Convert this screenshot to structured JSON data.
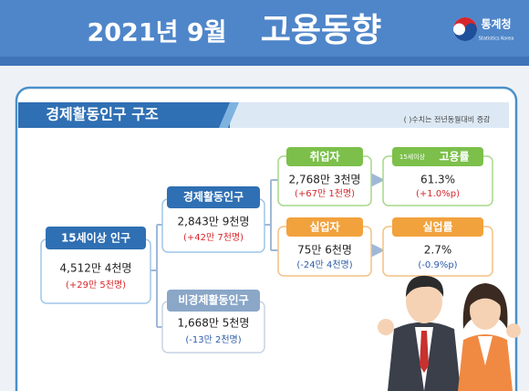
{
  "header": {
    "date": "2021년 9월",
    "title": "고용동향",
    "logo": {
      "name": "통계청",
      "subtitle": "Statistics Korea"
    }
  },
  "section": {
    "title": "경제활동인구 구조",
    "note": "( )수치는 전년동월대비 증감"
  },
  "nodes": [
    {
      "label": "15세이상 인구",
      "value": "4,512만 4천명",
      "change": "(+29만 5천명)"
    },
    {
      "label": "경제활동인구",
      "value": "2,843만 9천명",
      "change": "(+42만 7천명)"
    },
    {
      "label": "비경제활동인구",
      "value": "1,668만 5천명",
      "change": "(-13만 2천명)"
    },
    {
      "label": "취업자",
      "value": "2,768만 3천명",
      "change": "(+67만 1천명)"
    },
    {
      "label": "실업자",
      "value": "75만 6천명",
      "change": "(-24만 4천명)"
    },
    {
      "prefix": "15세이상",
      "label": "고용률",
      "value": "61.3%",
      "change": "(+1.0%p)"
    },
    {
      "label": "실업률",
      "value": "2.7%",
      "change": "(-0.9%p)"
    }
  ]
}
